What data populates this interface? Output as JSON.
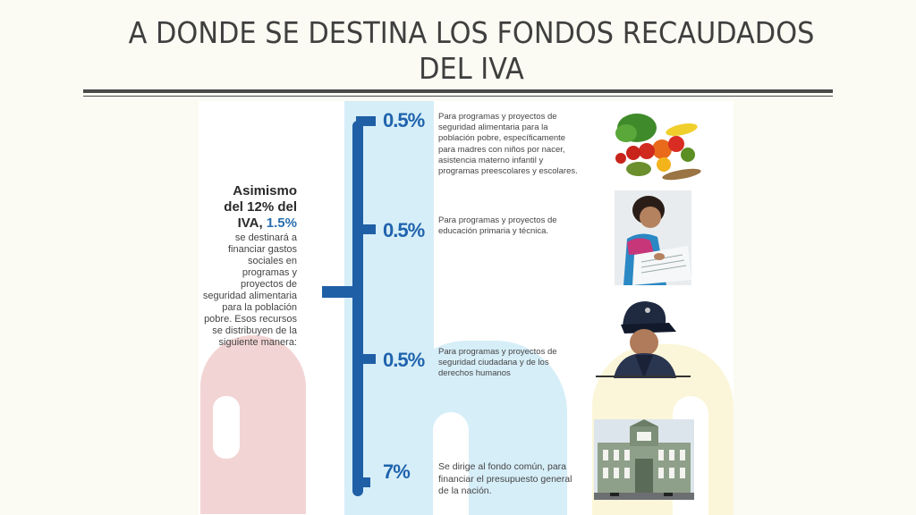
{
  "slide": {
    "title_line1": "A DONDE SE DESTINA LOS FONDOS RECAUDADOS",
    "title_line2": "DEL IVA"
  },
  "infographic": {
    "intro_bold_1": "Asimismo",
    "intro_bold_2": "del 12% del",
    "intro_bold_3": "IVA, ",
    "intro_highlight": "1.5%",
    "intro_body": "se destinará a financiar gastos sociales en programas y proyectos de seguridad alimentaria para la población pobre. Esos recursos se distribuyen de la siguiente manera:",
    "items": [
      {
        "percent": "0.5%",
        "text": "Para programas y proyectos de seguridad alimentaria para la población pobre, específicamente para madres con niños por nacer, asistencia materno infantil y programas preescolares y escolares.",
        "image": "vegetables-fruit-photo"
      },
      {
        "percent": "0.5%",
        "text": "Para programas y proyectos de educación primaria y técnica.",
        "image": "child-studying-photo"
      },
      {
        "percent": "0.5%",
        "text": "Para programas y proyectos de seguridad ciudadana y de los derechos humanos",
        "image": "police-officer-photo"
      },
      {
        "percent": "7%",
        "text": "Se dirige al fondo común, para financiar el presupuesto general de la nación.",
        "image": "national-palace-photo"
      }
    ]
  },
  "colors": {
    "brand_blue": "#1f5fa6",
    "title_gray": "#3f3f3f",
    "background": "#fbfbf3"
  }
}
